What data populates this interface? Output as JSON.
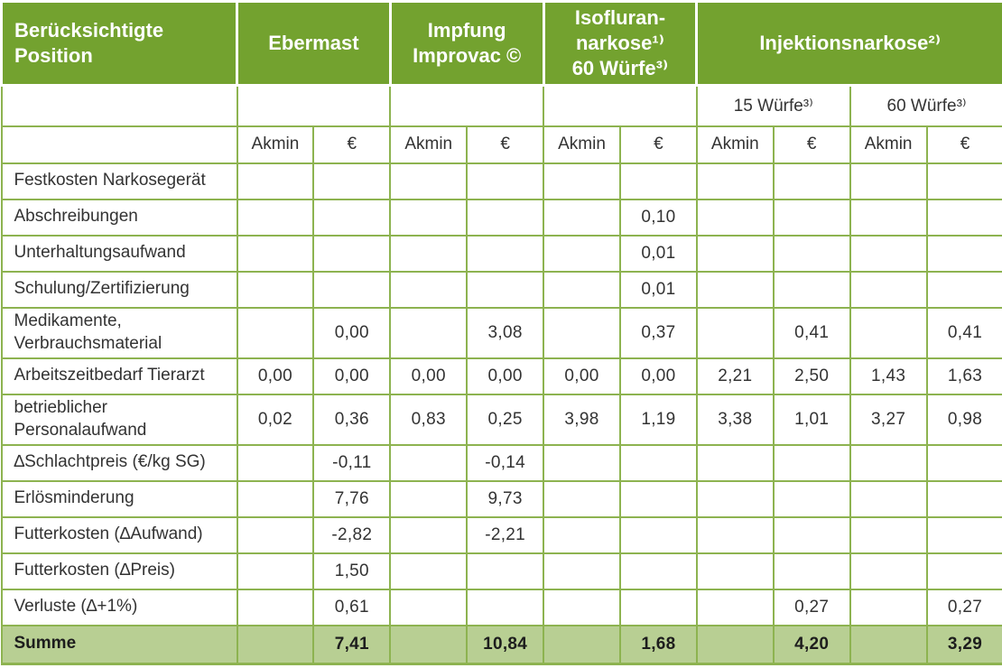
{
  "colors": {
    "header_green": "#73a22f",
    "summe_green": "#b8cf93",
    "border_green": "#8db350",
    "header_text_color": "#ffffff",
    "body_text_color": "#333333"
  },
  "table": {
    "header": {
      "position_label": "Berücksichtigte\nPosition",
      "groups": [
        {
          "key": "ebermast",
          "label": "Ebermast"
        },
        {
          "key": "impfung-improvac",
          "label": "Impfung\nImprovac ©"
        },
        {
          "key": "isofluran-narkose",
          "label": "Isofluran-\nnarkose¹⁾\n60 Würfe³⁾"
        },
        {
          "key": "injektionsnarkose",
          "label": "Injektionsnarkose²⁾"
        }
      ],
      "subheaders": [
        {
          "key": "injektion-15-wuerfe",
          "label": "15 Würfe³⁾"
        },
        {
          "key": "injektion-60-wuerfe",
          "label": "60 Würfe³⁾"
        }
      ],
      "unit_time": "Akmin",
      "unit_currency": "€"
    },
    "column_keys": [
      "ebermast-akmin",
      "ebermast-eur",
      "impfung-akmin",
      "impfung-eur",
      "isofluran-akmin",
      "isofluran-eur",
      "injektion15-akmin",
      "injektion15-eur",
      "injektion60-akmin",
      "injektion60-eur"
    ],
    "rows": [
      {
        "label": "Festkosten Narkosegerät",
        "values": [
          "",
          "",
          "",
          "",
          "",
          "",
          "",
          "",
          "",
          ""
        ]
      },
      {
        "label": "Abschreibungen",
        "values": [
          "",
          "",
          "",
          "",
          "",
          "0,10",
          "",
          "",
          "",
          ""
        ]
      },
      {
        "label": "Unterhaltungsaufwand",
        "values": [
          "",
          "",
          "",
          "",
          "",
          "0,01",
          "",
          "",
          "",
          ""
        ]
      },
      {
        "label": "Schulung/Zertifizierung",
        "values": [
          "",
          "",
          "",
          "",
          "",
          "0,01",
          "",
          "",
          "",
          ""
        ]
      },
      {
        "label": "Medikamente,\nVerbrauchsmaterial",
        "tall": true,
        "values": [
          "",
          "0,00",
          "",
          "3,08",
          "",
          "0,37",
          "",
          "0,41",
          "",
          "0,41"
        ]
      },
      {
        "label": "Arbeitszeitbedarf Tierarzt",
        "values": [
          "0,00",
          "0,00",
          "0,00",
          "0,00",
          "0,00",
          "0,00",
          "2,21",
          "2,50",
          "1,43",
          "1,63"
        ]
      },
      {
        "label": "betrieblicher\nPersonalaufwand",
        "tall": true,
        "values": [
          "0,02",
          "0,36",
          "0,83",
          "0,25",
          "3,98",
          "1,19",
          "3,38",
          "1,01",
          "3,27",
          "0,98"
        ]
      },
      {
        "label": "∆Schlachtpreis (€/kg SG)",
        "values": [
          "",
          "-0,11",
          "",
          "-0,14",
          "",
          "",
          "",
          "",
          "",
          ""
        ]
      },
      {
        "label": "Erlösminderung",
        "values": [
          "",
          "7,76",
          "",
          "9,73",
          "",
          "",
          "",
          "",
          "",
          ""
        ]
      },
      {
        "label": "Futterkosten (∆Aufwand)",
        "values": [
          "",
          "-2,82",
          "",
          "-2,21",
          "",
          "",
          "",
          "",
          "",
          ""
        ]
      },
      {
        "label": "Futterkosten (∆Preis)",
        "values": [
          "",
          "1,50",
          "",
          "",
          "",
          "",
          "",
          "",
          "",
          ""
        ]
      },
      {
        "label": "Verluste (∆+1%)",
        "values": [
          "",
          "0,61",
          "",
          "",
          "",
          "",
          "",
          "0,27",
          "",
          "0,27"
        ]
      },
      {
        "label": "Summe",
        "is_total": true,
        "values": [
          "",
          "7,41",
          "",
          "10,84",
          "",
          "1,68",
          "",
          "4,20",
          "",
          "3,29"
        ]
      }
    ]
  }
}
